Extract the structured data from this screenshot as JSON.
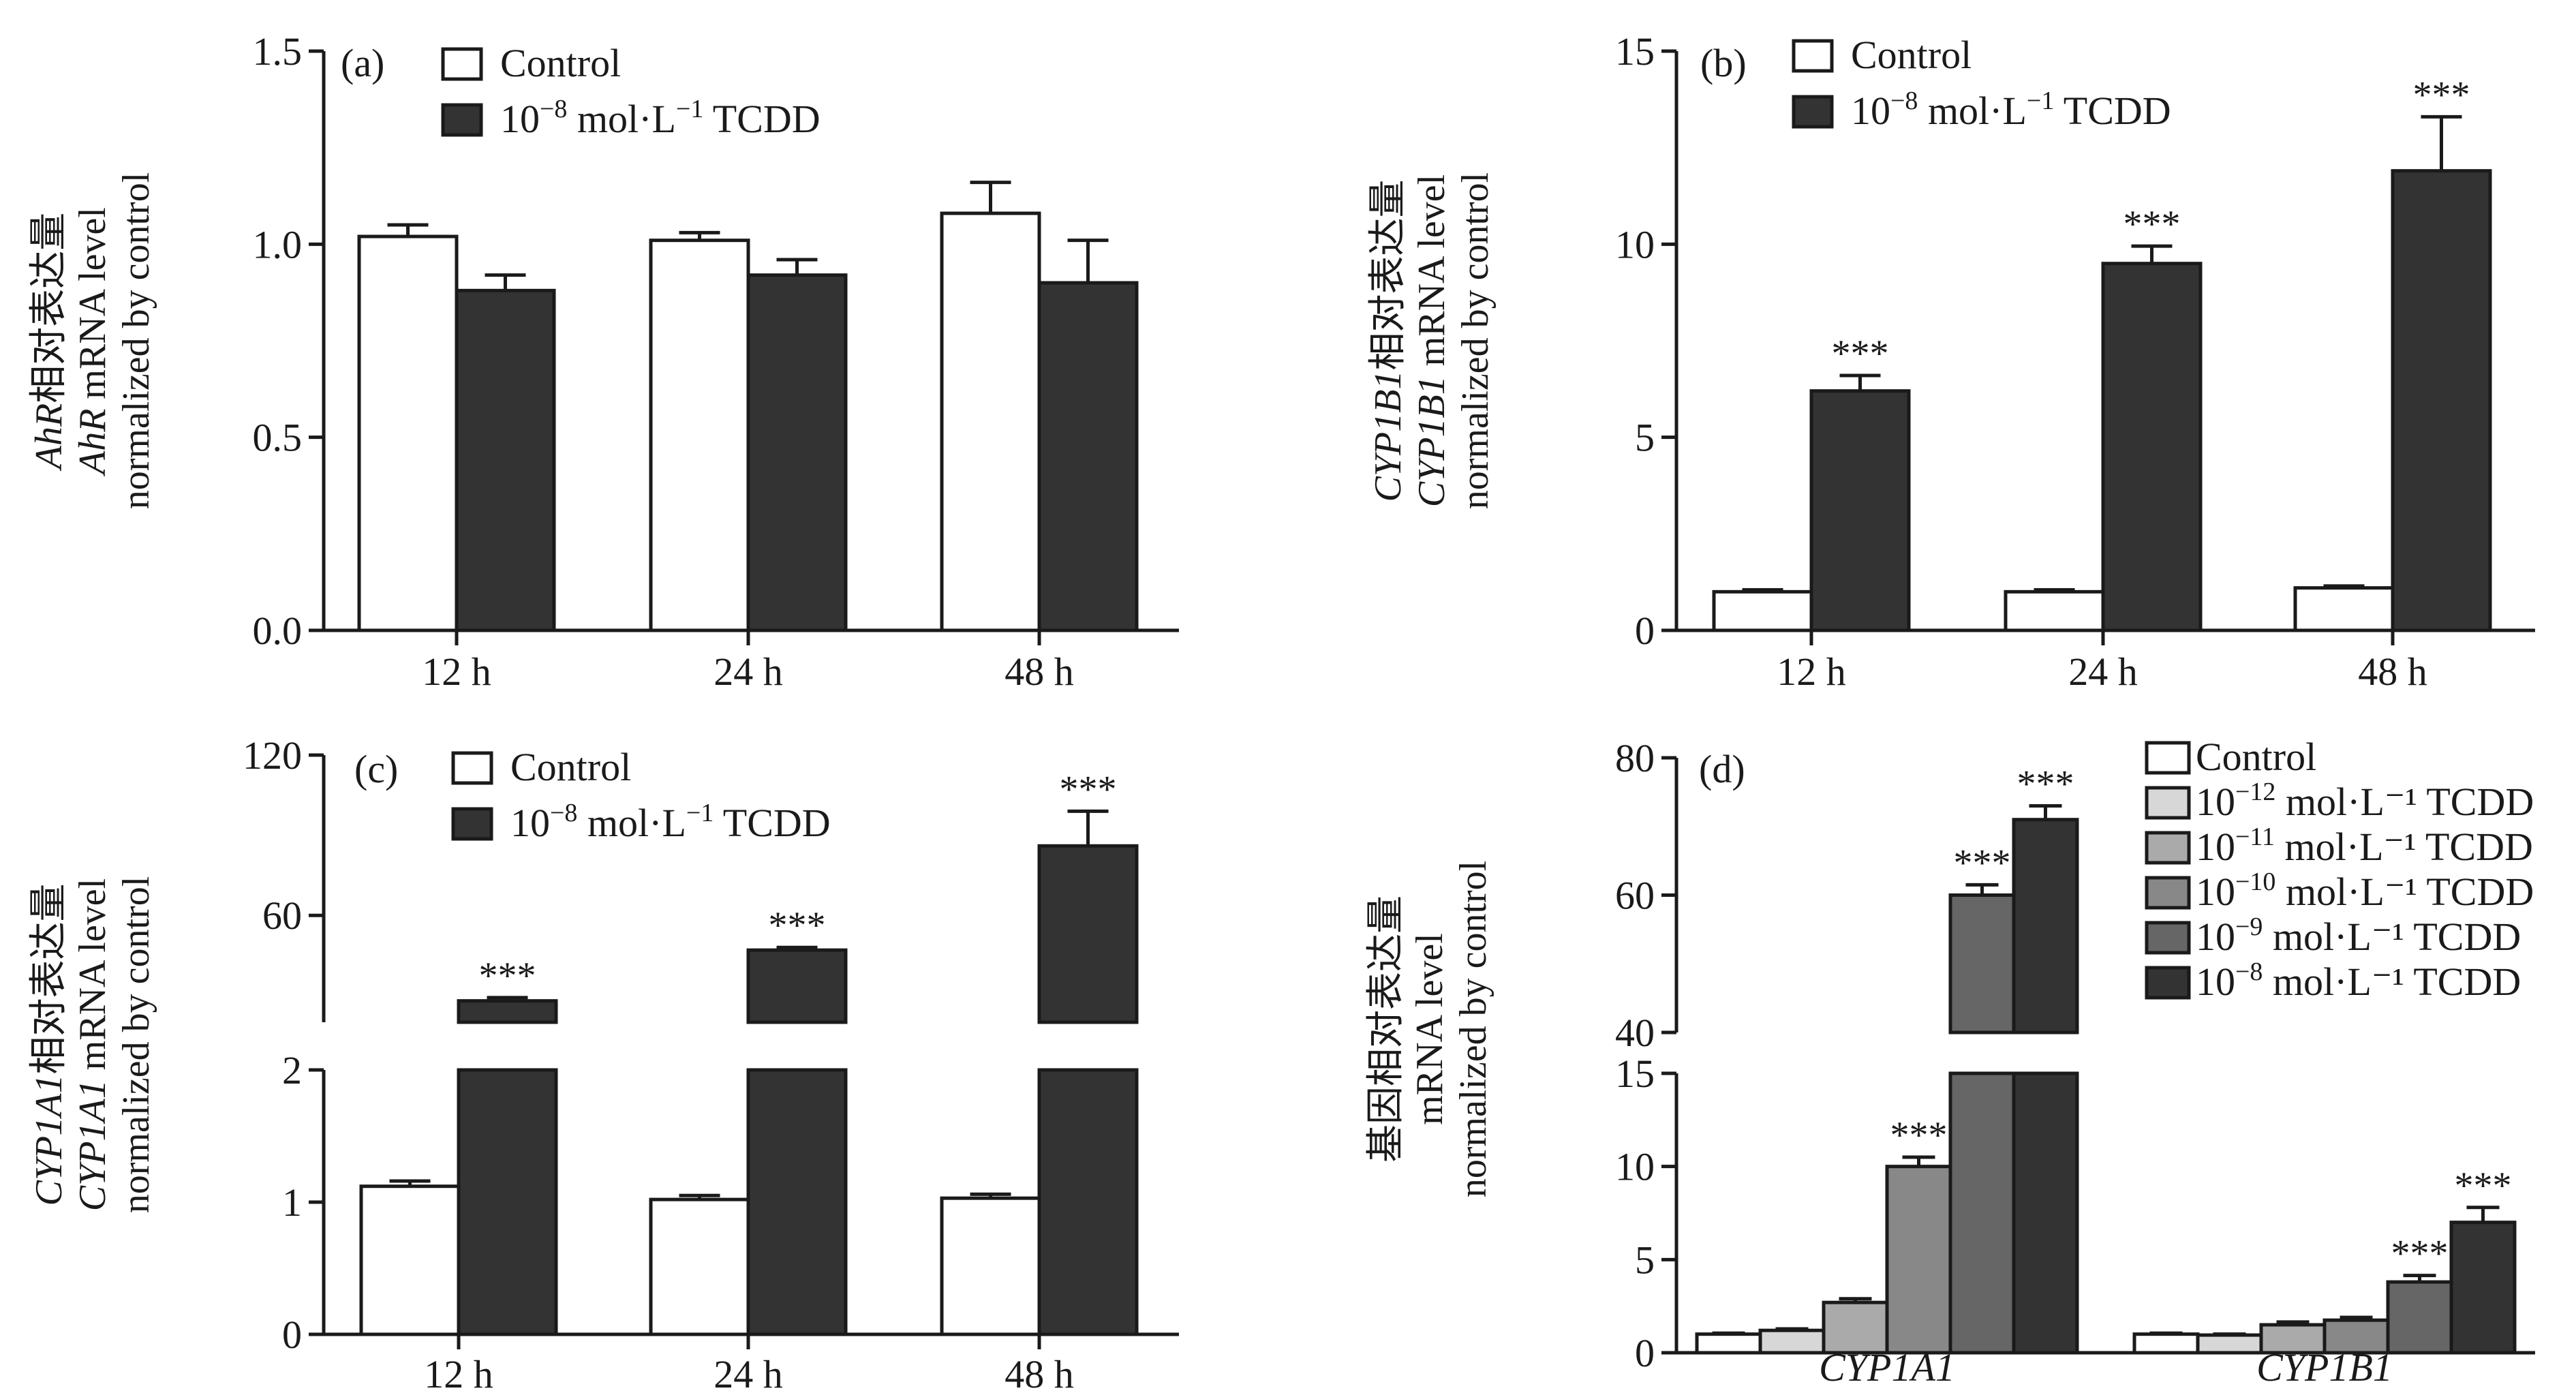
{
  "colors": {
    "control": "#ffffff",
    "tcdd_1e-12": "#d7d7d7",
    "tcdd_1e-11": "#aaaaaa",
    "tcdd_1e-10": "#888888",
    "tcdd_1e-9": "#666666",
    "tcdd_1e-8": "#333333"
  },
  "chart_data": [
    {
      "type": "bar",
      "panel_label": "(a)",
      "ylabel": [
        "AhR相对表达量",
        "AhR mRNA level",
        "normalized by control"
      ],
      "categories": [
        "12 h",
        "24 h",
        "48 h"
      ],
      "ylim": [
        0,
        1.5
      ],
      "yticks": [
        "0.0",
        "0.5",
        "1.0",
        "1.5"
      ],
      "legend": [
        "Control",
        "10⁻⁸ mol·L⁻¹ TCDD"
      ],
      "series": [
        {
          "name": "Control",
          "values": [
            1.02,
            1.01,
            1.08
          ],
          "errors": [
            0.03,
            0.02,
            0.08
          ]
        },
        {
          "name": "10⁻⁸ mol·L⁻¹ TCDD",
          "values": [
            0.88,
            0.92,
            0.9
          ],
          "errors": [
            0.04,
            0.04,
            0.11
          ]
        }
      ],
      "significance": [
        "",
        "",
        "",
        "",
        "",
        ""
      ]
    },
    {
      "type": "bar",
      "panel_label": "(b)",
      "ylabel": [
        "CYP1B1相对表达量",
        "CYP1B1 mRNA level",
        "normalized by control"
      ],
      "categories": [
        "12 h",
        "24 h",
        "48 h"
      ],
      "ylim": [
        0,
        15
      ],
      "yticks": [
        "0",
        "5",
        "10",
        "15"
      ],
      "legend": [
        "Control",
        "10⁻⁸ mol·L⁻¹ TCDD"
      ],
      "series": [
        {
          "name": "Control",
          "values": [
            1.0,
            1.0,
            1.1
          ],
          "errors": [
            0.05,
            0.05,
            0.05
          ]
        },
        {
          "name": "10⁻⁸ mol·L⁻¹ TCDD",
          "values": [
            6.2,
            9.5,
            11.9
          ],
          "errors": [
            0.4,
            0.45,
            1.4
          ]
        }
      ],
      "significance": [
        "***",
        "***",
        "***"
      ]
    },
    {
      "type": "bar",
      "panel_label": "(c)",
      "ylabel": [
        "CYP1A1相对表达量",
        "CYP1A1 mRNA level",
        "normalized by control"
      ],
      "categories": [
        "12 h",
        "24 h",
        "48 h"
      ],
      "axis_break": true,
      "ylim_lower": [
        0,
        2
      ],
      "ylim_upper": [
        20,
        120
      ],
      "yticks_lower": [
        "0",
        "1",
        "2"
      ],
      "yticks_upper": [
        "60",
        "120"
      ],
      "legend": [
        "Control",
        "10⁻⁸ mol·L⁻¹ TCDD"
      ],
      "series": [
        {
          "name": "Control",
          "values": [
            1.12,
            1.02,
            1.03
          ],
          "errors": [
            0.04,
            0.03,
            0.03
          ]
        },
        {
          "name": "10⁻⁸ mol·L⁻¹ TCDD",
          "values": [
            28,
            47,
            86
          ],
          "errors": [
            1.2,
            1.0,
            13
          ]
        }
      ],
      "significance": [
        "***",
        "***",
        "***"
      ]
    },
    {
      "type": "bar",
      "panel_label": "(d)",
      "ylabel": [
        "基因相对表达量",
        "mRNA level",
        "normalized by control"
      ],
      "categories": [
        "CYP1A1",
        "CYP1B1"
      ],
      "axis_break": true,
      "ylim_lower": [
        0,
        15
      ],
      "ylim_upper": [
        40,
        80
      ],
      "yticks_lower": [
        "0",
        "5",
        "10",
        "15"
      ],
      "yticks_upper": [
        "40",
        "60",
        "80"
      ],
      "legend": [
        {
          "base": "Control",
          "exp": ""
        },
        {
          "base": "10",
          "exp": "−12",
          "unit": " mol·L⁻¹ TCDD"
        },
        {
          "base": "10",
          "exp": "−11",
          "unit": " mol·L⁻¹ TCDD"
        },
        {
          "base": "10",
          "exp": "−10",
          "unit": " mol·L⁻¹ TCDD"
        },
        {
          "base": "10",
          "exp": "−9",
          "unit": " mol·L⁻¹ TCDD"
        },
        {
          "base": "10",
          "exp": "−8",
          "unit": " mol·L⁻¹ TCDD"
        }
      ],
      "series": [
        {
          "name": "Control",
          "values": [
            1.0,
            1.0
          ],
          "errors": [
            0.05,
            0.05
          ]
        },
        {
          "name": "10⁻¹² mol·L⁻¹ TCDD",
          "values": [
            1.2,
            0.95
          ],
          "errors": [
            0.08,
            0.05
          ]
        },
        {
          "name": "10⁻¹¹ mol·L⁻¹ TCDD",
          "values": [
            2.7,
            1.5
          ],
          "errors": [
            0.2,
            0.15
          ]
        },
        {
          "name": "10⁻¹⁰ mol·L⁻¹ TCDD",
          "values": [
            10.0,
            1.75
          ],
          "errors": [
            0.5,
            0.15
          ]
        },
        {
          "name": "10⁻⁹ mol·L⁻¹ TCDD",
          "values": [
            60.0,
            3.8
          ],
          "errors": [
            1.5,
            0.35
          ]
        },
        {
          "name": "10⁻⁸ mol·L⁻¹ TCDD",
          "values": [
            71.0,
            7.0
          ],
          "errors": [
            2.0,
            0.8
          ]
        }
      ],
      "significance": [
        [
          "",
          "",
          "",
          "***",
          "***",
          "***"
        ],
        [
          "",
          "",
          "",
          "",
          "***",
          "***"
        ]
      ]
    }
  ]
}
